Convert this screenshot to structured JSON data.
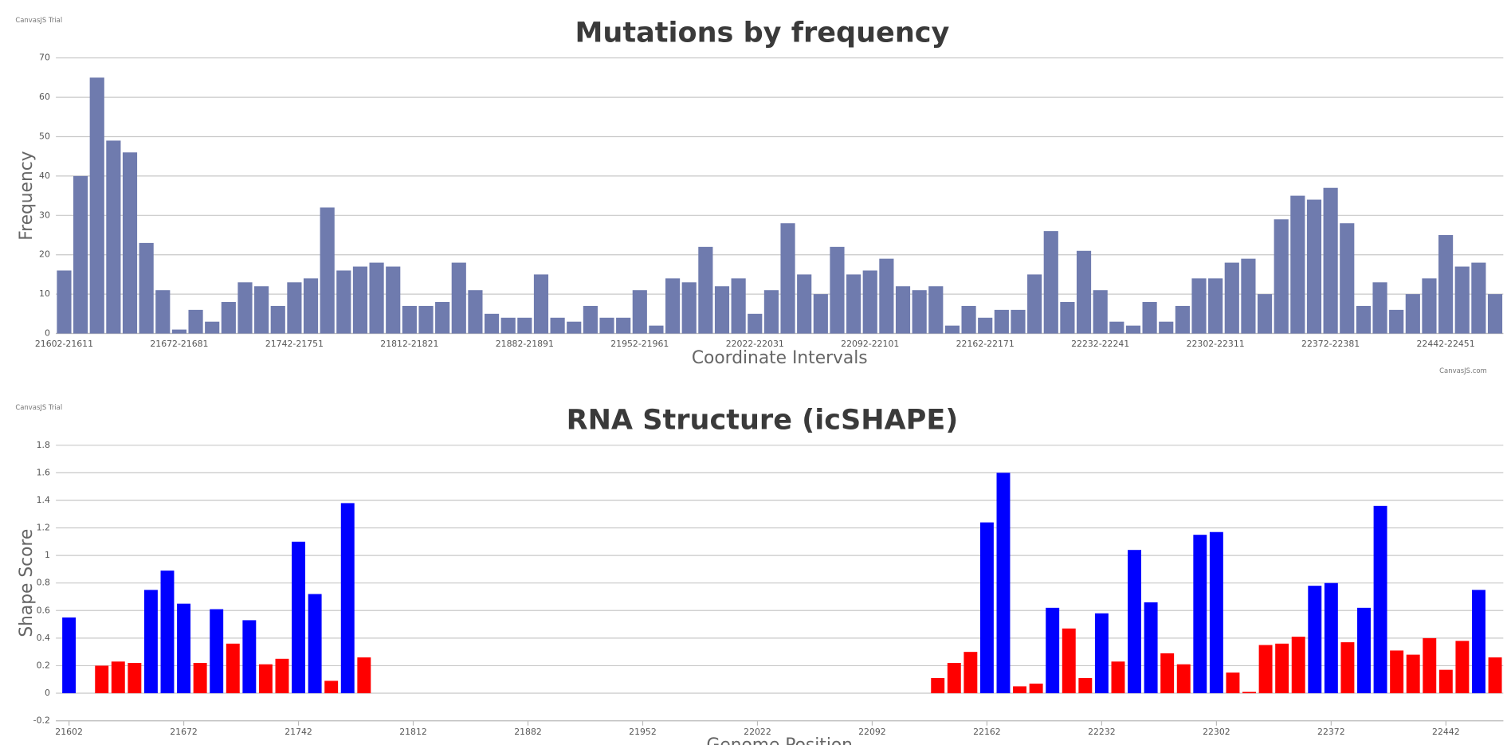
{
  "chart_data": [
    {
      "type": "bar",
      "title": "Mutations by frequency",
      "watermark": "CanvasJS Trial",
      "credit": "CanvasJS.com",
      "x_label": "Coordinate Intervals",
      "y_label": "Frequency",
      "color": "#6f7bae",
      "grid": true,
      "categories": [
        "21602-21611",
        null,
        null,
        null,
        null,
        null,
        null,
        "21672-21681",
        null,
        null,
        null,
        null,
        null,
        null,
        "21742-21751",
        null,
        null,
        null,
        null,
        null,
        null,
        "21812-21821",
        null,
        null,
        null,
        null,
        null,
        null,
        "21882-21891",
        null,
        null,
        null,
        null,
        null,
        null,
        "21952-21961",
        null,
        null,
        null,
        null,
        null,
        null,
        "22022-22031",
        null,
        null,
        null,
        null,
        null,
        null,
        "22092-22101",
        null,
        null,
        null,
        null,
        null,
        null,
        "22162-22171",
        null,
        null,
        null,
        null,
        null,
        null,
        "22232-22241",
        null,
        null,
        null,
        null,
        null,
        null,
        "22302-22311",
        null,
        null,
        null,
        null,
        null,
        null,
        "22372-22381",
        null,
        null,
        null,
        null,
        null,
        null,
        "22442-22451",
        null,
        null,
        null
      ],
      "values": [
        16,
        40,
        65,
        49,
        46,
        23,
        11,
        1,
        6,
        3,
        8,
        13,
        12,
        7,
        13,
        14,
        32,
        16,
        17,
        18,
        17,
        7,
        7,
        8,
        18,
        11,
        5,
        4,
        4,
        15,
        4,
        3,
        7,
        4,
        4,
        11,
        2,
        14,
        13,
        22,
        12,
        14,
        5,
        11,
        28,
        15,
        10,
        22,
        15,
        16,
        19,
        12,
        11,
        12,
        2,
        7,
        4,
        6,
        6,
        15,
        26,
        8,
        21,
        11,
        3,
        2,
        8,
        3,
        7,
        14,
        14,
        18,
        19,
        10,
        29,
        35,
        34,
        37,
        28,
        7,
        13,
        6,
        10,
        14,
        25,
        17,
        18,
        10
      ],
      "ylim": [
        0,
        70
      ],
      "yticks": [
        0,
        10,
        20,
        30,
        40,
        50,
        60,
        70
      ]
    },
    {
      "type": "numeric-bar",
      "title": "RNA Structure (icSHAPE)",
      "watermark": "CanvasJS Trial",
      "x_label": "Genome Position",
      "y_label": "Shape Score",
      "grid": true,
      "x": [
        21602,
        21622,
        21632,
        21642,
        21652,
        21662,
        21672,
        21682,
        21692,
        21702,
        21712,
        21722,
        21732,
        21742,
        21752,
        21762,
        21772,
        21782,
        22132,
        22142,
        22152,
        22162,
        22172,
        22182,
        22192,
        22202,
        22212,
        22222,
        22232,
        22242,
        22252,
        22262,
        22272,
        22282,
        22292,
        22302,
        22312,
        22322,
        22332,
        22342,
        22352,
        22362,
        22372,
        22382,
        22392,
        22402,
        22412,
        22422,
        22432,
        22442,
        22452,
        22462,
        22472
      ],
      "values": [
        0.55,
        0.2,
        0.23,
        0.22,
        0.75,
        0.89,
        0.65,
        0.22,
        0.61,
        0.36,
        0.53,
        0.21,
        0.25,
        1.1,
        0.72,
        0.09,
        1.38,
        0.26,
        0.11,
        0.22,
        0.3,
        1.24,
        1.6,
        0.05,
        0.07,
        0.62,
        0.47,
        0.11,
        0.58,
        0.23,
        1.04,
        0.66,
        0.29,
        0.21,
        1.15,
        1.17,
        0.15,
        0.01,
        0.35,
        0.36,
        0.41,
        0.78,
        0.8,
        0.37,
        0.62,
        1.36,
        0.31,
        0.28,
        0.4,
        0.17,
        0.38,
        0.75,
        0.26
      ],
      "colors": [
        "#0000ff",
        "#ff0000",
        "#ff0000",
        "#ff0000",
        "#0000ff",
        "#0000ff",
        "#0000ff",
        "#ff0000",
        "#0000ff",
        "#ff0000",
        "#0000ff",
        "#ff0000",
        "#ff0000",
        "#0000ff",
        "#0000ff",
        "#ff0000",
        "#0000ff",
        "#ff0000",
        "#ff0000",
        "#ff0000",
        "#ff0000",
        "#0000ff",
        "#0000ff",
        "#ff0000",
        "#ff0000",
        "#0000ff",
        "#ff0000",
        "#ff0000",
        "#0000ff",
        "#ff0000",
        "#0000ff",
        "#0000ff",
        "#ff0000",
        "#ff0000",
        "#0000ff",
        "#0000ff",
        "#ff0000",
        "#ff0000",
        "#ff0000",
        "#ff0000",
        "#ff0000",
        "#0000ff",
        "#0000ff",
        "#ff0000",
        "#0000ff",
        "#0000ff",
        "#ff0000",
        "#ff0000",
        "#ff0000",
        "#ff0000",
        "#ff0000",
        "#0000ff",
        "#ff0000"
      ],
      "xlim": [
        21594,
        22477
      ],
      "xticks": [
        21602,
        21672,
        21742,
        21812,
        21882,
        21952,
        22022,
        22092,
        22162,
        22232,
        22302,
        22372,
        22442
      ],
      "ylim": [
        -0.2,
        1.8
      ],
      "yticks": [
        -0.2,
        0,
        0.2,
        0.4,
        0.6,
        0.8,
        1,
        1.2,
        1.4,
        1.6,
        1.8
      ]
    }
  ]
}
